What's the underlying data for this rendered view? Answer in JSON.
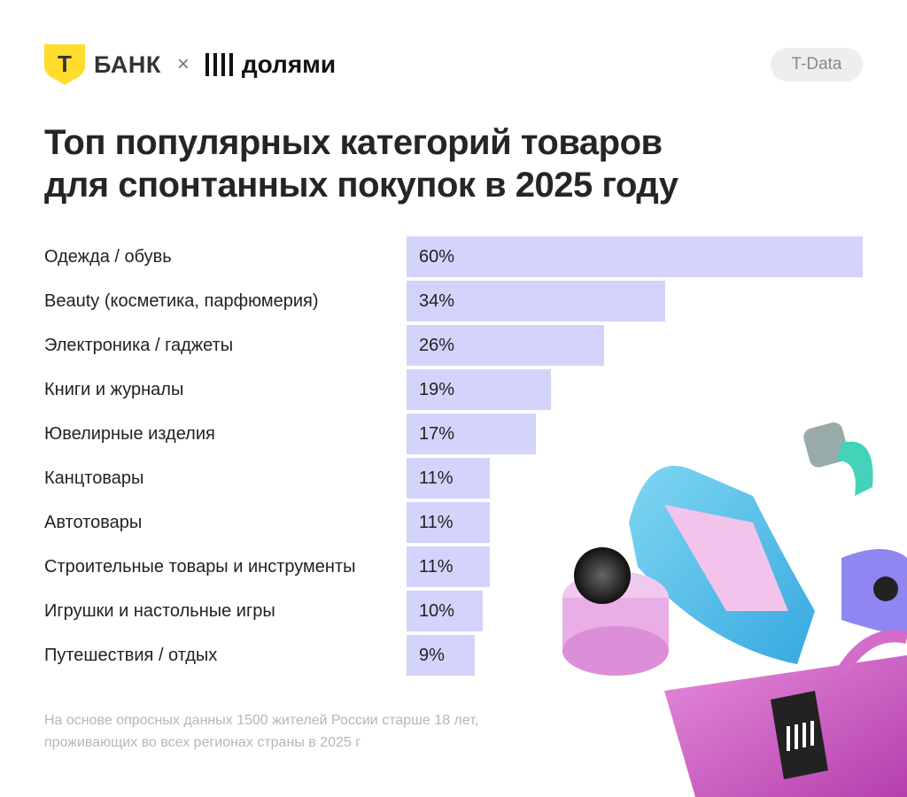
{
  "header": {
    "logo_bank": "БАНК",
    "logo_bank_letter": "T",
    "separator": "×",
    "logo_partner": "долями",
    "badge": "T-Data"
  },
  "title_lines": [
    "Топ популярных категорий товаров",
    "для спонтанных покупок в 2025 году"
  ],
  "chart_data": {
    "type": "bar",
    "orientation": "horizontal",
    "title": "Топ популярных категорий товаров для спонтанных покупок в 2025 году",
    "categories": [
      "Одежда / обувь",
      "Beauty (косметика, парфюмерия)",
      "Электроника / гаджеты",
      "Книги и журналы",
      "Ювелирные изделия",
      "Канцтовары",
      "Автотовары",
      "Строительные товары и инструменты",
      "Игрушки и настольные игры",
      "Путешествия / отдых"
    ],
    "values": [
      60,
      34,
      26,
      19,
      17,
      11,
      11,
      11,
      10,
      9
    ],
    "labels": [
      "60%",
      "34%",
      "26%",
      "19%",
      "17%",
      "11%",
      "11%",
      "11%",
      "10%",
      "9%"
    ],
    "unit": "%",
    "xlim": [
      0,
      60
    ],
    "grid": false,
    "bar_color": "#d3d3fc"
  },
  "footnote_lines": [
    "На основе опросных данных 1500 жителей России старше 18 лет,",
    "проживающих во всех регионах страны в 2025 г"
  ],
  "colors": {
    "brand_yellow": "#ffdd2d",
    "bar": "#d3d3fc"
  }
}
